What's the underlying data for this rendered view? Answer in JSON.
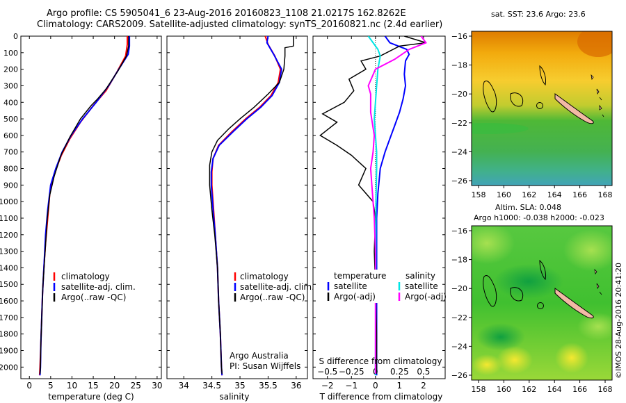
{
  "header": {
    "line1": "Argo profile: CS 5905041_6 23-Aug-2016 20160823_1108 21.0217S 162.8262E",
    "line2": "Climatology: CARS2009. Satellite-adjusted climatology: synTS_20160821.nc (2.4d earlier)"
  },
  "colors": {
    "red": "#ff0000",
    "blue": "#0000ff",
    "black": "#000000",
    "cyan": "#00e5e5",
    "magenta": "#ff00ff",
    "land": "#f2b9a5"
  },
  "side_text": "©IMOS 28-Aug-2016 20:41:20",
  "chart_data": [
    {
      "type": "line",
      "name": "temperature-profile",
      "xlabel": "temperature (deg C)",
      "xlim": [
        -2,
        31
      ],
      "ylim": [
        2070,
        0
      ],
      "xticks": [
        0,
        5,
        10,
        15,
        20,
        25,
        30
      ],
      "yticks": [
        0,
        100,
        200,
        300,
        400,
        500,
        600,
        700,
        800,
        900,
        1000,
        1100,
        1200,
        1300,
        1400,
        1500,
        1600,
        1700,
        1800,
        1900,
        2000
      ],
      "legend": [
        "climatology",
        "satellite-adj. clim.",
        "Argo(..raw -QC)"
      ],
      "series": [
        {
          "key": "climatology",
          "color": "#ff0000",
          "points": [
            [
              23.0,
              0
            ],
            [
              23.0,
              50
            ],
            [
              22.6,
              120
            ],
            [
              20.5,
              220
            ],
            [
              18.0,
              330
            ],
            [
              15.0,
              420
            ],
            [
              12.0,
              520
            ],
            [
              9.5,
              620
            ],
            [
              7.5,
              720
            ],
            [
              6.0,
              820
            ],
            [
              4.8,
              950
            ],
            [
              4.3,
              1100
            ],
            [
              3.8,
              1250
            ],
            [
              3.4,
              1400
            ],
            [
              3.1,
              1550
            ],
            [
              2.9,
              1700
            ],
            [
              2.7,
              1850
            ],
            [
              2.5,
              2000
            ],
            [
              2.4,
              2050
            ]
          ]
        },
        {
          "key": "satellite",
          "color": "#0000ff",
          "points": [
            [
              23.5,
              0
            ],
            [
              23.5,
              60
            ],
            [
              23.2,
              110
            ],
            [
              21.0,
              200
            ],
            [
              18.6,
              300
            ],
            [
              15.7,
              400
            ],
            [
              12.5,
              500
            ],
            [
              9.8,
              600
            ],
            [
              7.7,
              700
            ],
            [
              6.2,
              800
            ],
            [
              5.0,
              900
            ],
            [
              4.3,
              1050
            ],
            [
              3.8,
              1200
            ],
            [
              3.4,
              1400
            ],
            [
              3.1,
              1550
            ],
            [
              2.9,
              1700
            ],
            [
              2.7,
              1850
            ],
            [
              2.6,
              2000
            ],
            [
              2.5,
              2050
            ]
          ]
        },
        {
          "key": "argo",
          "color": "#000000",
          "points": [
            [
              23.3,
              0
            ],
            [
              23.3,
              60
            ],
            [
              22.8,
              120
            ],
            [
              20.8,
              210
            ],
            [
              18.0,
              320
            ],
            [
              16.0,
              380
            ],
            [
              14.5,
              420
            ],
            [
              12.0,
              500
            ],
            [
              9.5,
              610
            ],
            [
              7.4,
              720
            ],
            [
              5.8,
              850
            ],
            [
              4.8,
              960
            ],
            [
              4.2,
              1100
            ],
            [
              3.7,
              1300
            ],
            [
              3.2,
              1500
            ],
            [
              2.9,
              1700
            ],
            [
              2.7,
              1850
            ],
            [
              2.6,
              2000
            ],
            [
              2.5,
              2040
            ]
          ]
        }
      ]
    },
    {
      "type": "line",
      "name": "salinity-profile",
      "xlabel": "salinity",
      "xlim": [
        33.7,
        36.2
      ],
      "ylim": [
        2070,
        0
      ],
      "xticks": [
        34,
        34.5,
        35,
        35.5,
        36
      ],
      "legend": [
        "climatology",
        "satellite-adj. clim.",
        "Argo(..raw -QC)"
      ],
      "note_lines": [
        "Argo Australia",
        "PI: Susan Wijffels"
      ],
      "series": [
        {
          "key": "climatology",
          "color": "#ff0000",
          "points": [
            [
              35.45,
              0
            ],
            [
              35.5,
              50
            ],
            [
              35.62,
              120
            ],
            [
              35.72,
              200
            ],
            [
              35.68,
              280
            ],
            [
              35.55,
              360
            ],
            [
              35.35,
              430
            ],
            [
              35.1,
              500
            ],
            [
              34.85,
              580
            ],
            [
              34.62,
              660
            ],
            [
              34.52,
              740
            ],
            [
              34.5,
              820
            ],
            [
              34.5,
              900
            ],
            [
              34.53,
              1050
            ],
            [
              34.56,
              1200
            ],
            [
              34.6,
              1400
            ],
            [
              34.62,
              1600
            ],
            [
              34.65,
              1800
            ],
            [
              34.67,
              2000
            ],
            [
              34.68,
              2050
            ]
          ]
        },
        {
          "key": "satellite",
          "color": "#0000ff",
          "points": [
            [
              35.5,
              0
            ],
            [
              35.48,
              40
            ],
            [
              35.6,
              110
            ],
            [
              35.74,
              200
            ],
            [
              35.7,
              280
            ],
            [
              35.57,
              360
            ],
            [
              35.37,
              430
            ],
            [
              35.12,
              500
            ],
            [
              34.87,
              580
            ],
            [
              34.63,
              660
            ],
            [
              34.52,
              740
            ],
            [
              34.49,
              820
            ],
            [
              34.49,
              900
            ],
            [
              34.52,
              1050
            ],
            [
              34.56,
              1200
            ],
            [
              34.6,
              1400
            ],
            [
              34.62,
              1600
            ],
            [
              34.65,
              1800
            ],
            [
              34.67,
              2000
            ],
            [
              34.68,
              2050
            ]
          ]
        },
        {
          "key": "argo",
          "color": "#000000",
          "points": [
            [
              35.95,
              0
            ],
            [
              35.95,
              60
            ],
            [
              35.8,
              70
            ],
            [
              35.8,
              120
            ],
            [
              35.78,
              200
            ],
            [
              35.7,
              280
            ],
            [
              35.5,
              350
            ],
            [
              35.25,
              430
            ],
            [
              35.0,
              500
            ],
            [
              34.8,
              560
            ],
            [
              34.6,
              630
            ],
            [
              34.5,
              700
            ],
            [
              34.46,
              780
            ],
            [
              34.46,
              900
            ],
            [
              34.5,
              1050
            ],
            [
              34.55,
              1200
            ],
            [
              34.6,
              1400
            ],
            [
              34.62,
              1600
            ],
            [
              34.65,
              1800
            ],
            [
              34.67,
              2000
            ],
            [
              34.68,
              2040
            ]
          ]
        }
      ]
    },
    {
      "type": "line",
      "name": "difference-profile",
      "xlabel": "T difference from climatology",
      "xlabel_top": "S difference from climatology",
      "xlim": [
        -2.6,
        2.9
      ],
      "ylim": [
        2070,
        0
      ],
      "xticks": [
        -2,
        -1,
        0,
        1,
        2
      ],
      "xticks_s": [
        -0.5,
        -0.25,
        0,
        0.25,
        0.5
      ],
      "legend_t_title": "temperature",
      "legend_s_title": "salinity",
      "legend_t": [
        "satellite",
        "Argo(-adj)"
      ],
      "legend_s": [
        "satellite",
        "Argo(-adj)"
      ],
      "series": [
        {
          "key": "t_satellite",
          "color": "#0000ff",
          "points": [
            [
              0.4,
              0
            ],
            [
              0.6,
              40
            ],
            [
              1.3,
              80
            ],
            [
              1.4,
              110
            ],
            [
              1.25,
              150
            ],
            [
              1.2,
              230
            ],
            [
              1.25,
              300
            ],
            [
              1.15,
              380
            ],
            [
              1.0,
              460
            ],
            [
              0.8,
              540
            ],
            [
              0.6,
              620
            ],
            [
              0.4,
              700
            ],
            [
              0.2,
              800
            ],
            [
              0.1,
              950
            ],
            [
              0.05,
              1100
            ],
            [
              0.05,
              1400
            ],
            [
              0.05,
              1700
            ],
            [
              0.05,
              2050
            ]
          ]
        },
        {
          "key": "t_argo",
          "color": "#000000",
          "points": [
            [
              1.2,
              0
            ],
            [
              2.1,
              40
            ],
            [
              1.0,
              60
            ],
            [
              0.2,
              120
            ],
            [
              -0.6,
              150
            ],
            [
              -0.4,
              200
            ],
            [
              -1.1,
              260
            ],
            [
              -0.9,
              330
            ],
            [
              -1.3,
              400
            ],
            [
              -2.2,
              470
            ],
            [
              -1.6,
              520
            ],
            [
              -2.3,
              600
            ],
            [
              -1.6,
              660
            ],
            [
              -1.0,
              720
            ],
            [
              -0.4,
              800
            ],
            [
              -0.7,
              900
            ],
            [
              -0.1,
              1000
            ],
            [
              0.0,
              1100
            ],
            [
              -0.05,
              1300
            ],
            [
              0.0,
              1500
            ],
            [
              0.05,
              1800
            ],
            [
              0.05,
              2040
            ]
          ]
        },
        {
          "key": "s_satellite",
          "color": "#00e5e5",
          "points": [
            [
              -0.3,
              0
            ],
            [
              -0.1,
              40
            ],
            [
              0.1,
              80
            ],
            [
              0.2,
              120
            ],
            [
              0.1,
              200
            ],
            [
              0.05,
              300
            ],
            [
              0.0,
              400
            ],
            [
              -0.05,
              500
            ],
            [
              0.0,
              600
            ],
            [
              0.05,
              700
            ],
            [
              0.05,
              800
            ],
            [
              0.02,
              1000
            ],
            [
              0.0,
              2050
            ]
          ]
        },
        {
          "key": "s_argo",
          "color": "#ff00ff",
          "points": [
            [
              1.9,
              0
            ],
            [
              2.1,
              40
            ],
            [
              1.4,
              80
            ],
            [
              0.8,
              140
            ],
            [
              0.0,
              200
            ],
            [
              -0.3,
              300
            ],
            [
              -0.2,
              350
            ],
            [
              -0.2,
              460
            ],
            [
              -0.05,
              600
            ],
            [
              -0.1,
              700
            ],
            [
              -0.2,
              800
            ],
            [
              -0.15,
              900
            ],
            [
              -0.05,
              1100
            ],
            [
              0.0,
              1300
            ],
            [
              0.0,
              1600
            ],
            [
              0.0,
              2040
            ]
          ]
        }
      ]
    }
  ],
  "maps": {
    "sst": {
      "title": "sat. SST: 23.6 Argo: 23.6",
      "xticks": [
        "158",
        "160",
        "162",
        "164",
        "166",
        "168"
      ],
      "yticks": [
        "-16",
        "-18",
        "-20",
        "-22",
        "-24",
        "-26"
      ]
    },
    "sla": {
      "title_line1": "Altim. SLA: 0.048",
      "title_line2": "Argo h1000: -0.038 h2000: -0.023",
      "xticks": [
        "158",
        "160",
        "162",
        "164",
        "166",
        "168"
      ],
      "yticks": [
        "-16",
        "-18",
        "-20",
        "-22",
        "-24",
        "-26"
      ]
    }
  }
}
